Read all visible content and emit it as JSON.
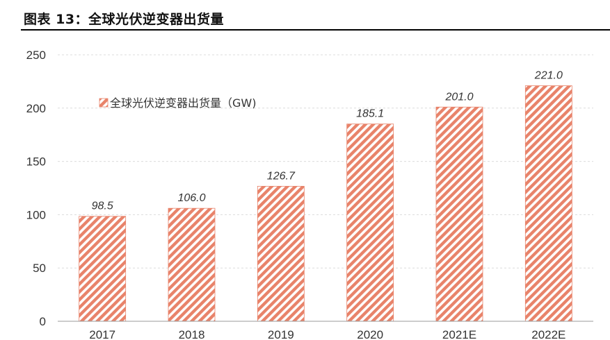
{
  "figure": {
    "title": "图表 13：全球光伏逆变器出货量"
  },
  "chart_data": {
    "type": "bar",
    "categories": [
      "2017",
      "2018",
      "2019",
      "2020",
      "2021E",
      "2022E"
    ],
    "series": [
      {
        "name": "全球光伏逆变器出货量（GW)",
        "values": [
          98.5,
          106.0,
          126.7,
          185.1,
          201.0,
          221.0
        ],
        "value_labels": [
          "98.5",
          "106.0",
          "126.7",
          "185.1",
          "201.0",
          "221.0"
        ],
        "color": "#e8836a",
        "pattern": "diagonal-hatch"
      }
    ],
    "title": "",
    "xlabel": "",
    "ylabel": "",
    "ylim": [
      0,
      250
    ],
    "yticks": [
      0,
      50,
      100,
      150,
      200,
      250
    ],
    "grid": true,
    "legend_position": "top-left"
  }
}
